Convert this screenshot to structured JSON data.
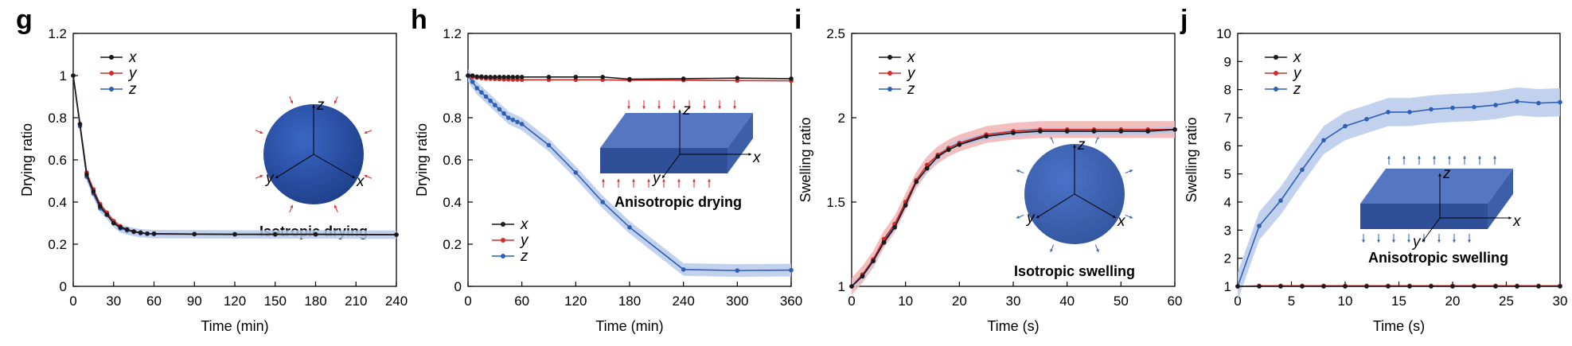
{
  "colors": {
    "x": "#1a1a1a",
    "y": "#d42a2a",
    "z": "#2e5fb3",
    "band_z": "#b7c9ea",
    "band_y": "#f0b3b3",
    "sphere": "#2a4f9e",
    "slab": "#3b5fa8"
  },
  "chart_data": [
    {
      "panel": "g",
      "type": "line",
      "xlabel": "Time (min)",
      "ylabel": "Drying ratio",
      "xlim": [
        0,
        240
      ],
      "ylim": [
        0,
        1.2
      ],
      "xticks": [
        0,
        30,
        60,
        90,
        120,
        150,
        180,
        210,
        240
      ],
      "yticks": [
        0,
        0.2,
        0.4,
        0.6,
        0.8,
        1,
        1.2
      ],
      "ytick_labels": [
        "0",
        "0.2",
        "0.4",
        "0.6",
        "0.8",
        "1",
        "1.2"
      ],
      "legend": "top-left",
      "inset": {
        "shape": "sphere",
        "label": "Isotropic drying",
        "arrows": "inward"
      },
      "series": [
        {
          "name": "x",
          "x": [
            0,
            5,
            10,
            15,
            20,
            25,
            30,
            35,
            40,
            45,
            50,
            55,
            60,
            90,
            120,
            150,
            180,
            240
          ],
          "values": [
            1,
            0.77,
            0.53,
            0.45,
            0.38,
            0.34,
            0.3,
            0.28,
            0.27,
            0.26,
            0.255,
            0.25,
            0.25,
            0.248,
            0.247,
            0.247,
            0.247,
            0.245
          ]
        },
        {
          "name": "y",
          "x": [
            0,
            5,
            10,
            15,
            20,
            25,
            30,
            35,
            40,
            45,
            50,
            55,
            60,
            90,
            120,
            150,
            180,
            240
          ],
          "values": [
            1,
            0.77,
            0.54,
            0.46,
            0.39,
            0.35,
            0.31,
            0.285,
            0.27,
            0.26,
            0.255,
            0.25,
            0.25,
            0.248,
            0.247,
            0.247,
            0.247,
            0.245
          ]
        },
        {
          "name": "z",
          "x": [
            0,
            5,
            10,
            15,
            20,
            25,
            30,
            35,
            40,
            45,
            50,
            55,
            60,
            90,
            120,
            150,
            180,
            240
          ],
          "values": [
            1,
            0.76,
            0.52,
            0.44,
            0.37,
            0.34,
            0.3,
            0.275,
            0.265,
            0.258,
            0.252,
            0.25,
            0.248,
            0.247,
            0.246,
            0.246,
            0.246,
            0.245
          ],
          "band": 0.02
        }
      ]
    },
    {
      "panel": "h",
      "type": "line",
      "xlabel": "Time (min)",
      "ylabel": "Drying ratio",
      "xlim": [
        0,
        360
      ],
      "ylim": [
        0,
        1.2
      ],
      "xticks": [
        0,
        60,
        120,
        180,
        240,
        300,
        360
      ],
      "yticks": [
        0,
        0.2,
        0.4,
        0.6,
        0.8,
        1,
        1.2
      ],
      "ytick_labels": [
        "0",
        "0.2",
        "0.4",
        "0.6",
        "0.8",
        "1",
        "1.2"
      ],
      "legend": "bottom-left",
      "inset": {
        "shape": "slab",
        "label": "Anisotropic drying",
        "arrows": "vertical"
      },
      "series": [
        {
          "name": "x",
          "x": [
            0,
            5,
            10,
            15,
            20,
            25,
            30,
            35,
            40,
            45,
            50,
            55,
            60,
            90,
            120,
            150,
            180,
            240,
            300,
            360
          ],
          "values": [
            1,
            1,
            0.995,
            0.995,
            0.993,
            0.993,
            0.993,
            0.993,
            0.993,
            0.993,
            0.993,
            0.993,
            0.993,
            0.993,
            0.993,
            0.993,
            0.983,
            0.985,
            0.988,
            0.985
          ]
        },
        {
          "name": "y",
          "x": [
            0,
            5,
            10,
            15,
            20,
            25,
            30,
            35,
            40,
            45,
            50,
            55,
            60,
            90,
            120,
            150,
            180,
            240,
            300,
            360
          ],
          "values": [
            1,
            0.993,
            0.99,
            0.988,
            0.986,
            0.985,
            0.984,
            0.983,
            0.982,
            0.982,
            0.981,
            0.981,
            0.98,
            0.98,
            0.98,
            0.98,
            0.978,
            0.978,
            0.976,
            0.975
          ]
        },
        {
          "name": "z",
          "x": [
            0,
            5,
            10,
            15,
            20,
            25,
            30,
            35,
            40,
            45,
            50,
            55,
            60,
            90,
            120,
            150,
            180,
            240,
            300,
            360
          ],
          "values": [
            1,
            0.97,
            0.94,
            0.92,
            0.9,
            0.88,
            0.86,
            0.84,
            0.82,
            0.8,
            0.79,
            0.78,
            0.77,
            0.67,
            0.54,
            0.4,
            0.28,
            0.08,
            0.075,
            0.077
          ],
          "band": 0.03
        }
      ]
    },
    {
      "panel": "i",
      "type": "line",
      "xlabel": "Time (s)",
      "ylabel": "Swelling ratio",
      "xlim": [
        0,
        60
      ],
      "ylim": [
        1,
        2.5
      ],
      "xticks": [
        0,
        10,
        20,
        30,
        40,
        50,
        60
      ],
      "yticks": [
        1,
        1.5,
        2,
        2.5
      ],
      "ytick_labels": [
        "1",
        "1.5",
        "2",
        "2.5"
      ],
      "legend": "top-left",
      "inset": {
        "shape": "sphere",
        "label": "Isotropic swelling",
        "arrows": "outward"
      },
      "series": [
        {
          "name": "x",
          "x": [
            0,
            2,
            4,
            6,
            8,
            10,
            12,
            14,
            16,
            18,
            20,
            25,
            30,
            35,
            40,
            45,
            50,
            55,
            60
          ],
          "values": [
            1,
            1.06,
            1.15,
            1.26,
            1.35,
            1.48,
            1.62,
            1.7,
            1.77,
            1.81,
            1.84,
            1.89,
            1.91,
            1.92,
            1.92,
            1.92,
            1.92,
            1.92,
            1.93
          ]
        },
        {
          "name": "y",
          "x": [
            0,
            2,
            4,
            6,
            8,
            10,
            12,
            14,
            16,
            18,
            20,
            25,
            30,
            35,
            40,
            45,
            50,
            55,
            60
          ],
          "values": [
            1,
            1.07,
            1.16,
            1.28,
            1.37,
            1.5,
            1.63,
            1.72,
            1.78,
            1.82,
            1.85,
            1.9,
            1.92,
            1.93,
            1.93,
            1.93,
            1.93,
            1.93,
            1.93
          ],
          "band": 0.05
        },
        {
          "name": "z",
          "x": [
            0,
            2,
            4,
            6,
            8,
            10,
            12,
            14,
            16,
            18,
            20,
            25,
            30,
            35,
            40,
            45,
            50,
            55,
            60
          ],
          "values": [
            1,
            1.06,
            1.15,
            1.27,
            1.36,
            1.49,
            1.62,
            1.7,
            1.77,
            1.82,
            1.85,
            1.89,
            1.91,
            1.92,
            1.92,
            1.92,
            1.92,
            1.92,
            1.93
          ],
          "band": 0.02
        }
      ]
    },
    {
      "panel": "j",
      "type": "line",
      "xlabel": "Time (s)",
      "ylabel": "Swelling ratio",
      "xlim": [
        0,
        30
      ],
      "ylim": [
        1,
        10
      ],
      "xticks": [
        0,
        5,
        10,
        15,
        20,
        25,
        30
      ],
      "yticks": [
        1,
        2,
        3,
        4,
        5,
        6,
        7,
        8,
        9,
        10
      ],
      "ytick_labels": [
        "1",
        "2",
        "3",
        "4",
        "5",
        "6",
        "7",
        "8",
        "9",
        "10"
      ],
      "legend": "top-left",
      "inset": {
        "shape": "slab",
        "label": "Anisotropic swelling",
        "arrows": "vertical-blue"
      },
      "series": [
        {
          "name": "x",
          "x": [
            0,
            2,
            4,
            6,
            8,
            10,
            12,
            14,
            16,
            18,
            20,
            22,
            24,
            26,
            28,
            30
          ],
          "values": [
            1,
            1,
            1,
            1,
            1,
            1,
            1,
            1,
            1,
            1,
            1,
            1,
            1,
            1,
            1,
            1
          ]
        },
        {
          "name": "y",
          "x": [
            0,
            2,
            4,
            6,
            8,
            10,
            12,
            14,
            16,
            18,
            20,
            22,
            24,
            26,
            28,
            30
          ],
          "values": [
            1,
            1.02,
            1.02,
            1.02,
            1.02,
            1.02,
            1.02,
            1.02,
            1.02,
            1.02,
            1.02,
            1.02,
            1.02,
            1.02,
            1.02,
            1.02
          ]
        },
        {
          "name": "z",
          "x": [
            0,
            2,
            4,
            6,
            8,
            10,
            12,
            14,
            16,
            18,
            20,
            22,
            24,
            26,
            28,
            30
          ],
          "values": [
            1,
            3.15,
            4.05,
            5.15,
            6.2,
            6.7,
            6.95,
            7.2,
            7.2,
            7.3,
            7.35,
            7.38,
            7.45,
            7.58,
            7.52,
            7.55
          ],
          "band": 0.5
        }
      ]
    }
  ]
}
